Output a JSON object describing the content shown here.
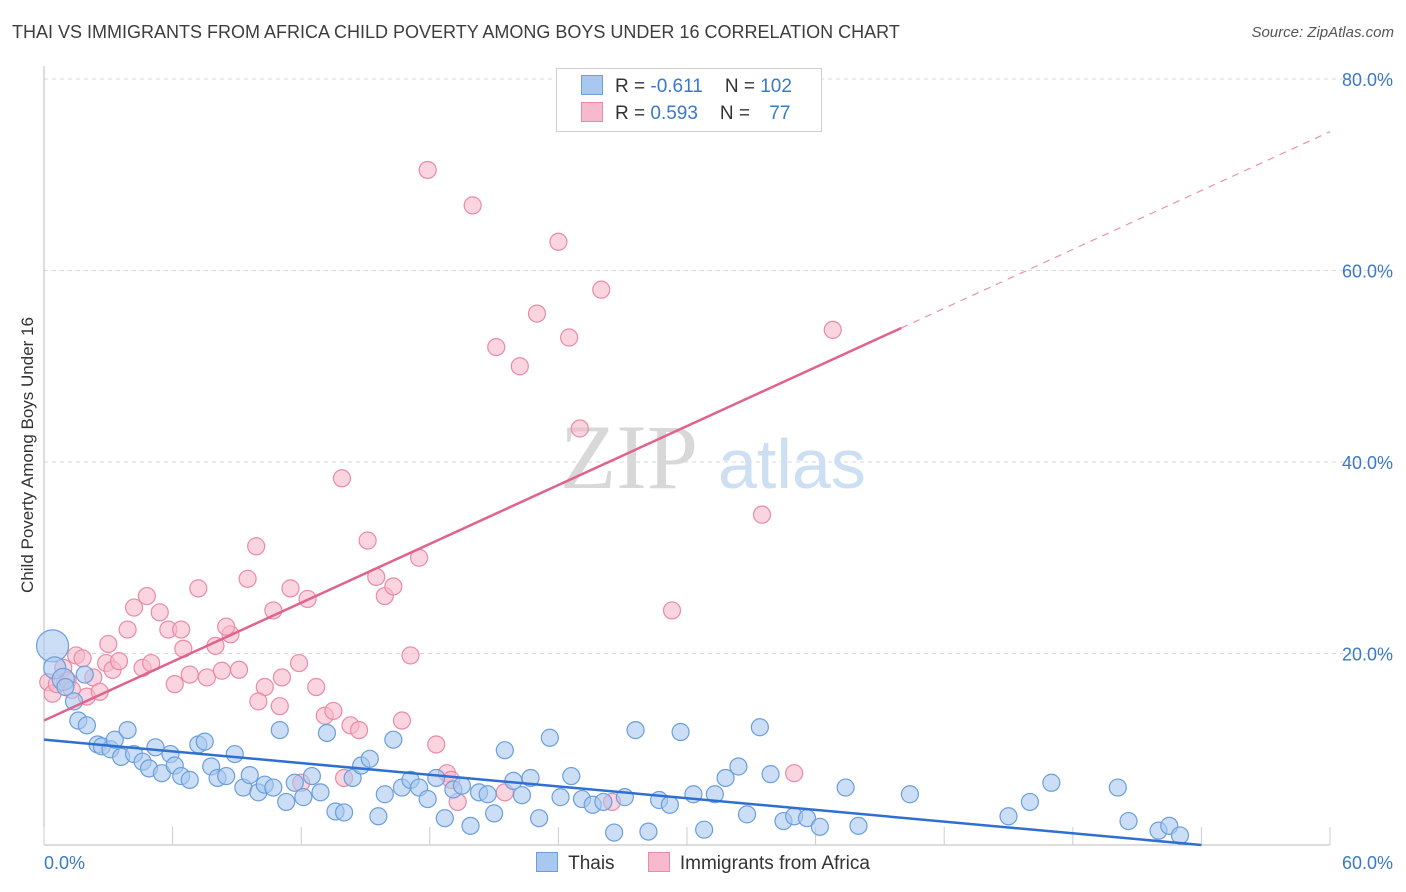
{
  "header": {
    "title": "THAI VS IMMIGRANTS FROM AFRICA CHILD POVERTY AMONG BOYS UNDER 16 CORRELATION CHART",
    "source": "Source: ZipAtlas.com"
  },
  "watermark": {
    "zip": "ZIP",
    "atlas": "atlas"
  },
  "legend": {
    "thais": {
      "r_label": "R = ",
      "r_value": "-0.611",
      "n_label": "N = ",
      "n_value": "102"
    },
    "africa": {
      "r_label": "R = ",
      "r_value": "0.593",
      "n_label": "N = ",
      "n_value": "77"
    }
  },
  "bottom_legend": {
    "thais": "Thais",
    "africa": "Immigrants from Africa"
  },
  "colors": {
    "thais_fill": "#a9c8ef",
    "thais_stroke": "#6a9fdc",
    "thais_line": "#2e6fd0",
    "africa_fill": "#f7b9cc",
    "africa_stroke": "#ea8aa8",
    "africa_line": "#e0638c",
    "axis_label": "#3a78c8",
    "grid": "#d9d9d9"
  },
  "chart_data": {
    "type": "scatter",
    "title": "THAI VS IMMIGRANTS FROM AFRICA CHILD POVERTY AMONG BOYS UNDER 16 CORRELATION CHART",
    "xlabel": "",
    "ylabel": "Child Poverty Among Boys Under 16",
    "xlim": [
      0,
      60
    ],
    "ylim": [
      0,
      80
    ],
    "x_tick_labels": [
      "0.0%",
      "60.0%"
    ],
    "y_tick_labels": [
      "20.0%",
      "40.0%",
      "60.0%",
      "80.0%"
    ],
    "y_ticks": [
      20,
      40,
      60,
      80
    ],
    "grid": true,
    "legend_position": "top-center",
    "series": [
      {
        "name": "Thais",
        "r": -0.611,
        "n": 102,
        "trend": {
          "x": [
            0,
            54
          ],
          "y": [
            11.0,
            0
          ]
        },
        "points": [
          [
            0.4,
            20.8
          ],
          [
            0.5,
            18.5
          ],
          [
            0.9,
            17.3
          ],
          [
            1.0,
            16.5
          ],
          [
            1.4,
            15.0
          ],
          [
            1.6,
            13.0
          ],
          [
            1.9,
            17.8
          ],
          [
            2.0,
            12.5
          ],
          [
            2.5,
            10.5
          ],
          [
            2.7,
            10.3
          ],
          [
            3.1,
            10.0
          ],
          [
            3.3,
            11.0
          ],
          [
            3.6,
            9.2
          ],
          [
            3.9,
            12.0
          ],
          [
            4.2,
            9.5
          ],
          [
            4.6,
            8.7
          ],
          [
            4.9,
            8.0
          ],
          [
            5.2,
            10.2
          ],
          [
            5.5,
            7.5
          ],
          [
            5.9,
            9.5
          ],
          [
            6.1,
            8.3
          ],
          [
            6.4,
            7.2
          ],
          [
            6.8,
            6.8
          ],
          [
            7.2,
            10.5
          ],
          [
            7.5,
            10.8
          ],
          [
            7.8,
            8.2
          ],
          [
            8.1,
            7.0
          ],
          [
            8.5,
            7.2
          ],
          [
            8.9,
            9.5
          ],
          [
            9.3,
            6.0
          ],
          [
            9.6,
            7.3
          ],
          [
            10.0,
            5.5
          ],
          [
            10.3,
            6.3
          ],
          [
            10.7,
            6.0
          ],
          [
            11.0,
            12.0
          ],
          [
            11.3,
            4.5
          ],
          [
            11.7,
            6.5
          ],
          [
            12.1,
            5.0
          ],
          [
            12.5,
            7.2
          ],
          [
            12.9,
            5.5
          ],
          [
            13.2,
            11.7
          ],
          [
            13.6,
            3.5
          ],
          [
            14.0,
            3.4
          ],
          [
            14.4,
            7.0
          ],
          [
            14.8,
            8.3
          ],
          [
            15.2,
            9.0
          ],
          [
            15.6,
            3.0
          ],
          [
            15.9,
            5.3
          ],
          [
            16.3,
            11.0
          ],
          [
            16.7,
            6.0
          ],
          [
            17.1,
            6.8
          ],
          [
            17.5,
            6.0
          ],
          [
            17.9,
            4.8
          ],
          [
            18.3,
            7.0
          ],
          [
            18.7,
            2.8
          ],
          [
            19.1,
            5.8
          ],
          [
            19.5,
            6.2
          ],
          [
            19.9,
            2.0
          ],
          [
            20.3,
            5.5
          ],
          [
            20.7,
            5.3
          ],
          [
            21.0,
            3.3
          ],
          [
            21.5,
            9.9
          ],
          [
            21.9,
            6.7
          ],
          [
            22.3,
            5.2
          ],
          [
            22.7,
            7.0
          ],
          [
            23.1,
            2.8
          ],
          [
            23.6,
            11.2
          ],
          [
            24.1,
            5.0
          ],
          [
            24.6,
            7.2
          ],
          [
            25.1,
            4.8
          ],
          [
            25.6,
            4.2
          ],
          [
            26.1,
            4.5
          ],
          [
            26.6,
            1.3
          ],
          [
            27.1,
            5.0
          ],
          [
            27.6,
            12.0
          ],
          [
            28.2,
            1.4
          ],
          [
            28.7,
            4.7
          ],
          [
            29.2,
            4.2
          ],
          [
            29.7,
            11.8
          ],
          [
            30.3,
            5.3
          ],
          [
            30.8,
            1.6
          ],
          [
            31.3,
            5.3
          ],
          [
            31.8,
            7.0
          ],
          [
            32.4,
            8.2
          ],
          [
            32.8,
            3.2
          ],
          [
            33.4,
            12.3
          ],
          [
            33.9,
            7.4
          ],
          [
            34.5,
            2.5
          ],
          [
            35.0,
            3.0
          ],
          [
            35.6,
            2.8
          ],
          [
            36.2,
            1.9
          ],
          [
            37.4,
            6.0
          ],
          [
            40.4,
            5.3
          ],
          [
            45.0,
            3.0
          ],
          [
            47.0,
            6.5
          ],
          [
            50.1,
            6.0
          ],
          [
            50.6,
            2.5
          ],
          [
            52.0,
            1.5
          ],
          [
            52.5,
            2.0
          ],
          [
            53.0,
            1.0
          ],
          [
            46.0,
            4.5
          ],
          [
            38.0,
            2.0
          ]
        ]
      },
      {
        "name": "Immigrants from Africa",
        "r": 0.593,
        "n": 77,
        "trend": {
          "x": [
            0,
            40
          ],
          "y": [
            13.0,
            54.0
          ]
        },
        "trend_dashed": {
          "x": [
            40,
            60
          ],
          "y": [
            54.0,
            74.5
          ]
        },
        "points": [
          [
            0.2,
            17.0
          ],
          [
            0.4,
            15.8
          ],
          [
            0.6,
            16.8
          ],
          [
            0.9,
            18.5
          ],
          [
            1.1,
            17.2
          ],
          [
            1.3,
            16.2
          ],
          [
            1.5,
            19.8
          ],
          [
            1.8,
            19.5
          ],
          [
            2.0,
            15.5
          ],
          [
            2.3,
            17.5
          ],
          [
            2.6,
            16.0
          ],
          [
            2.9,
            19.0
          ],
          [
            3.2,
            18.3
          ],
          [
            3.5,
            19.2
          ],
          [
            3.9,
            22.5
          ],
          [
            4.2,
            24.8
          ],
          [
            4.6,
            18.5
          ],
          [
            5.0,
            19.0
          ],
          [
            5.4,
            24.3
          ],
          [
            5.8,
            22.5
          ],
          [
            6.1,
            16.8
          ],
          [
            6.4,
            22.5
          ],
          [
            6.8,
            17.8
          ],
          [
            7.2,
            26.8
          ],
          [
            7.6,
            17.5
          ],
          [
            8.0,
            20.8
          ],
          [
            8.3,
            18.2
          ],
          [
            8.7,
            22.0
          ],
          [
            9.1,
            18.3
          ],
          [
            9.5,
            27.8
          ],
          [
            9.9,
            31.2
          ],
          [
            10.3,
            16.5
          ],
          [
            10.7,
            24.5
          ],
          [
            11.1,
            17.5
          ],
          [
            11.5,
            26.8
          ],
          [
            11.9,
            19.0
          ],
          [
            12.3,
            25.7
          ],
          [
            12.7,
            16.5
          ],
          [
            13.1,
            13.5
          ],
          [
            13.5,
            14.0
          ],
          [
            13.9,
            38.3
          ],
          [
            14.3,
            12.5
          ],
          [
            14.7,
            12.0
          ],
          [
            15.1,
            31.8
          ],
          [
            15.5,
            28.0
          ],
          [
            15.9,
            26.0
          ],
          [
            16.3,
            27.0
          ],
          [
            16.7,
            13.0
          ],
          [
            17.1,
            19.8
          ],
          [
            17.5,
            30.0
          ],
          [
            17.9,
            70.5
          ],
          [
            18.3,
            10.5
          ],
          [
            18.8,
            7.5
          ],
          [
            19.3,
            4.5
          ],
          [
            20.0,
            66.8
          ],
          [
            21.1,
            52.0
          ],
          [
            22.2,
            50.0
          ],
          [
            23.0,
            55.5
          ],
          [
            24.0,
            63.0
          ],
          [
            24.5,
            53.0
          ],
          [
            25.0,
            43.5
          ],
          [
            26.0,
            58.0
          ],
          [
            29.3,
            24.5
          ],
          [
            33.5,
            34.5
          ],
          [
            35.0,
            7.5
          ],
          [
            36.8,
            53.8
          ],
          [
            12.0,
            6.5
          ],
          [
            14.0,
            7.0
          ],
          [
            19.0,
            6.8
          ],
          [
            21.5,
            5.5
          ],
          [
            26.5,
            4.5
          ],
          [
            10.0,
            15.0
          ],
          [
            6.5,
            20.5
          ],
          [
            8.5,
            22.8
          ],
          [
            11.0,
            14.5
          ],
          [
            3.0,
            21.0
          ],
          [
            4.8,
            26.0
          ]
        ]
      }
    ]
  }
}
